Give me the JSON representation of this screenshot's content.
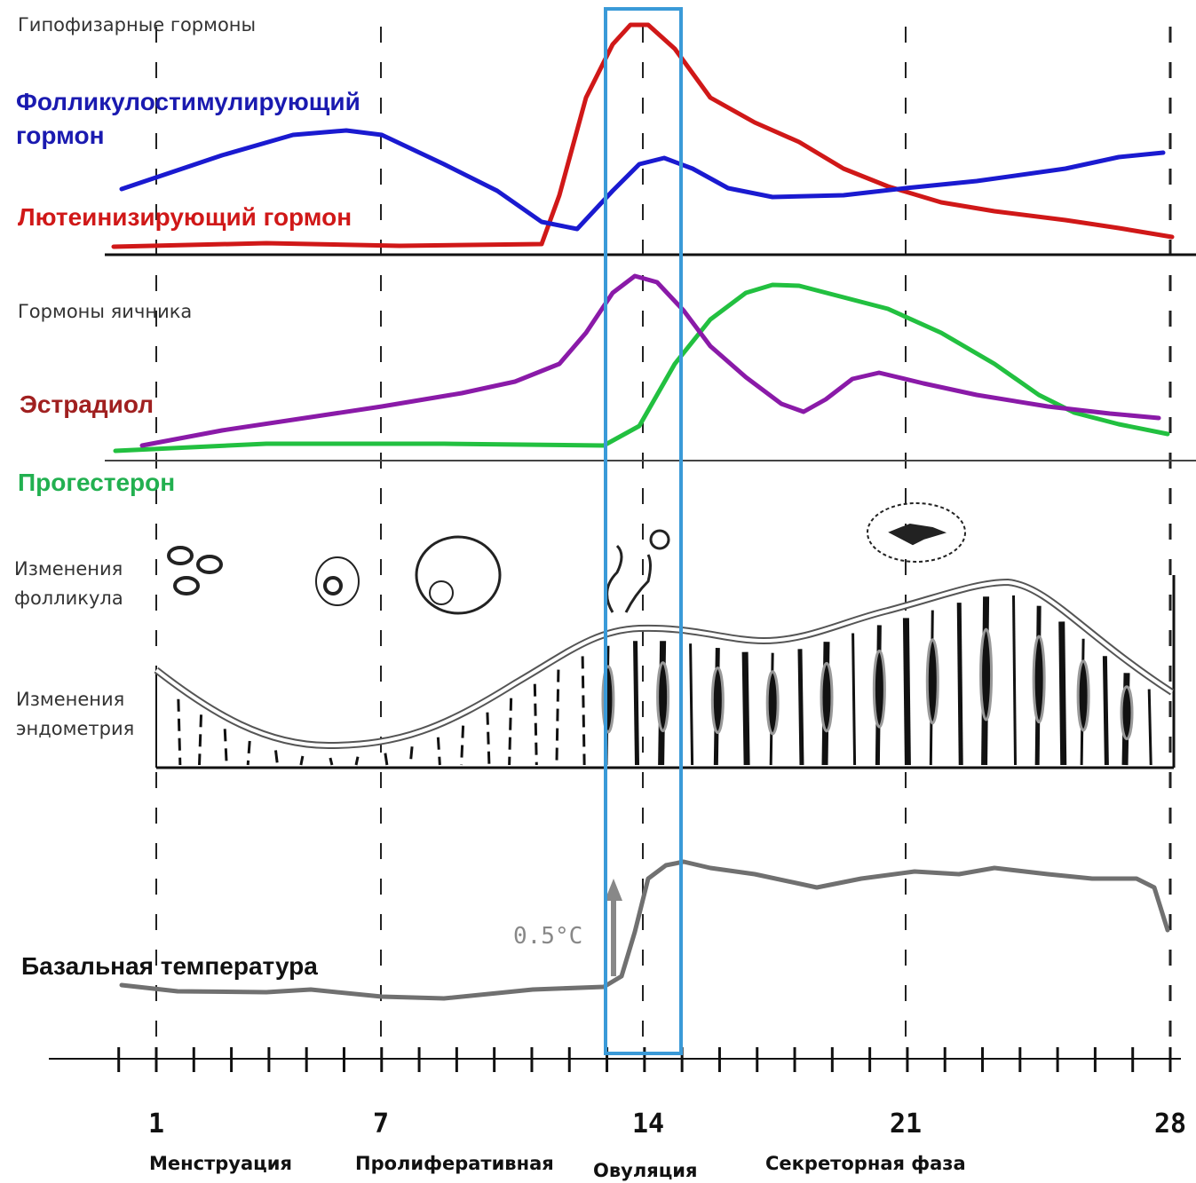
{
  "pituitary": {
    "title": "Гипофизарные гормоны",
    "fsh_lines": [
      "Фолликулостимулирующий",
      "гормон"
    ],
    "lh": "Лютеинизирующий гормон"
  },
  "ovarian": {
    "title": "Гормоны яичника",
    "estradiol": "Эстрадиол",
    "progesterone": "Прогестерон"
  },
  "follicle": [
    "Изменения",
    "фолликула"
  ],
  "endometrium": [
    "Изменения",
    "эндометрия"
  ],
  "basal": {
    "title": "Базальная температура",
    "rise": "0.5°C"
  },
  "days": [
    "1",
    "7",
    "14",
    "21",
    "28"
  ],
  "phases": [
    "Менструация",
    "Пролиферативная",
    "Овуляция",
    "Секреторная фаза"
  ]
}
